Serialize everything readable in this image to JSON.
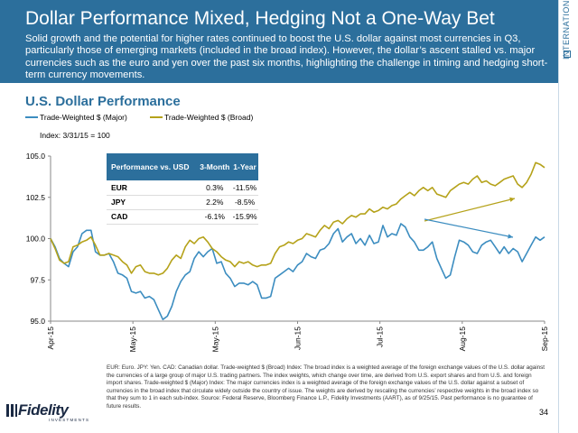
{
  "header": {
    "title": "Dollar Performance Mixed, Hedging Not a One-Way Bet",
    "subtitle": "Solid growth and the potential for higher rates continued to boost the U.S. dollar against most currencies in Q3, particularly those of emerging markets (included in the broad index). However, the dollar’s ascent stalled vs. major currencies such as the euro and yen over the past six months, highlighting the challenge in timing and hedging short-term currency movements."
  },
  "side_label": "INTERNATIONAL",
  "chart_title": "U.S. Dollar Performance",
  "index_note": "Index: 3/31/15 = 100",
  "colors": {
    "brand": "#2c6f9c",
    "major": "#3c8dc0",
    "broad": "#b5a21a"
  },
  "table": {
    "headers": [
      "Performance vs. USD",
      "3-Month",
      "1-Year"
    ],
    "rows": [
      [
        "EUR",
        "0.3%",
        "-11.5%"
      ],
      [
        "JPY",
        "2.2%",
        "-8.5%"
      ],
      [
        "CAD",
        "-6.1%",
        "-15.9%"
      ]
    ]
  },
  "footnote": "EUR: Euro. JPY: Yen. CAD: Canadian dollar. Trade-weighted $ (Broad) Index: The broad index is a weighted average of the foreign exchange values of the U.S. dollar against the currencies of a large group of major U.S. trading partners. The index weights, which change over time, are derived from U.S. export shares and from U.S. and foreign import shares. Trade-weighted $ (Major) Index: The major currencies index is a weighted average of the foreign exchange values of the U.S. dollar against a subset of currencies in the broad index that circulate widely outside the country of issue. The weights are derived by rescaling the currencies’ respective weights in the broad index so that they sum to 1 in each sub-index. Source: Federal Reserve, Bloomberg Finance L.P., Fidelity Investments (AART), as of  9/25/15. Past performance is no guarantee of future results.",
  "logo": {
    "name": "Fidelity",
    "tagline": "INVESTMENTS"
  },
  "page_number": "34",
  "chart_data": {
    "type": "line",
    "title": "U.S. Dollar Performance",
    "x_tick_labels": [
      "Apr-15",
      "May-15",
      "May-15",
      "Jun-15",
      "Jul-15",
      "Aug-15",
      "Sep-15"
    ],
    "ylim": [
      95.0,
      105.0
    ],
    "y_ticks": [
      95.0,
      97.5,
      100.0,
      102.5,
      105.0
    ],
    "y_tick_labels": [
      "95.0",
      "97.5",
      "100.0",
      "102.5",
      "105.0"
    ],
    "grid": false,
    "legend": "top-left",
    "annotations": [
      "arrow: broad index rising",
      "arrow: major index flat"
    ],
    "series": [
      {
        "name": "Trade-Weighted $ (Major)",
        "color": "#3c8dc0",
        "values": [
          100.0,
          99.5,
          98.8,
          98.5,
          98.3,
          99.2,
          99.5,
          100.3,
          100.5,
          100.5,
          99.2,
          99.0,
          99.0,
          99.1,
          98.6,
          97.9,
          97.8,
          97.6,
          96.8,
          96.7,
          96.8,
          96.4,
          96.5,
          96.3,
          95.7,
          95.1,
          95.3,
          95.9,
          96.8,
          97.4,
          97.8,
          98.0,
          98.8,
          99.2,
          98.9,
          99.2,
          99.4,
          98.5,
          98.6,
          97.9,
          97.6,
          97.1,
          97.3,
          97.3,
          97.2,
          97.4,
          97.2,
          96.4,
          96.4,
          96.5,
          97.6,
          97.8,
          98.0,
          98.2,
          98.0,
          98.4,
          98.6,
          99.1,
          98.9,
          98.8,
          99.3,
          99.4,
          99.7,
          100.3,
          100.6,
          99.8,
          100.1,
          100.3,
          99.7,
          100.0,
          99.6,
          100.2,
          99.7,
          99.8,
          100.8,
          100.1,
          100.3,
          100.2,
          100.9,
          100.7,
          100.1,
          99.8,
          99.3,
          99.3,
          99.5,
          99.8,
          98.8,
          98.2,
          97.6,
          97.8,
          98.9,
          99.9,
          99.8,
          99.6,
          99.2,
          99.1,
          99.6,
          99.8,
          99.9,
          99.5,
          99.1,
          99.5,
          99.1,
          99.4,
          99.2,
          98.6,
          99.1,
          99.6,
          100.1,
          99.9,
          100.1
        ]
      },
      {
        "name": "Trade-Weighted $ (Broad)",
        "color": "#b5a21a",
        "values": [
          100.0,
          99.4,
          98.7,
          98.5,
          98.6,
          99.5,
          99.6,
          99.8,
          99.9,
          100.1,
          99.6,
          99.0,
          99.0,
          99.1,
          99.0,
          98.9,
          98.6,
          98.4,
          97.9,
          98.3,
          98.4,
          98.0,
          97.9,
          97.9,
          97.8,
          97.9,
          98.2,
          98.7,
          99.0,
          98.8,
          99.5,
          99.9,
          99.7,
          100.0,
          100.1,
          99.8,
          99.4,
          99.2,
          98.9,
          98.7,
          98.6,
          98.3,
          98.6,
          98.5,
          98.6,
          98.4,
          98.3,
          98.4,
          98.4,
          98.5,
          99.1,
          99.5,
          99.6,
          99.8,
          99.7,
          99.9,
          100.0,
          100.3,
          100.2,
          100.1,
          100.5,
          100.8,
          100.6,
          101.0,
          101.1,
          100.9,
          101.2,
          101.4,
          101.3,
          101.5,
          101.5,
          101.8,
          101.6,
          101.7,
          101.9,
          101.8,
          102.0,
          102.1,
          102.4,
          102.6,
          102.8,
          102.6,
          102.9,
          103.1,
          102.9,
          103.1,
          102.7,
          102.6,
          102.5,
          102.9,
          103.1,
          103.3,
          103.4,
          103.3,
          103.6,
          103.8,
          103.4,
          103.5,
          103.3,
          103.2,
          103.4,
          103.6,
          103.7,
          103.8,
          103.3,
          103.1,
          103.4,
          103.9,
          104.6,
          104.5,
          104.3
        ]
      }
    ]
  }
}
